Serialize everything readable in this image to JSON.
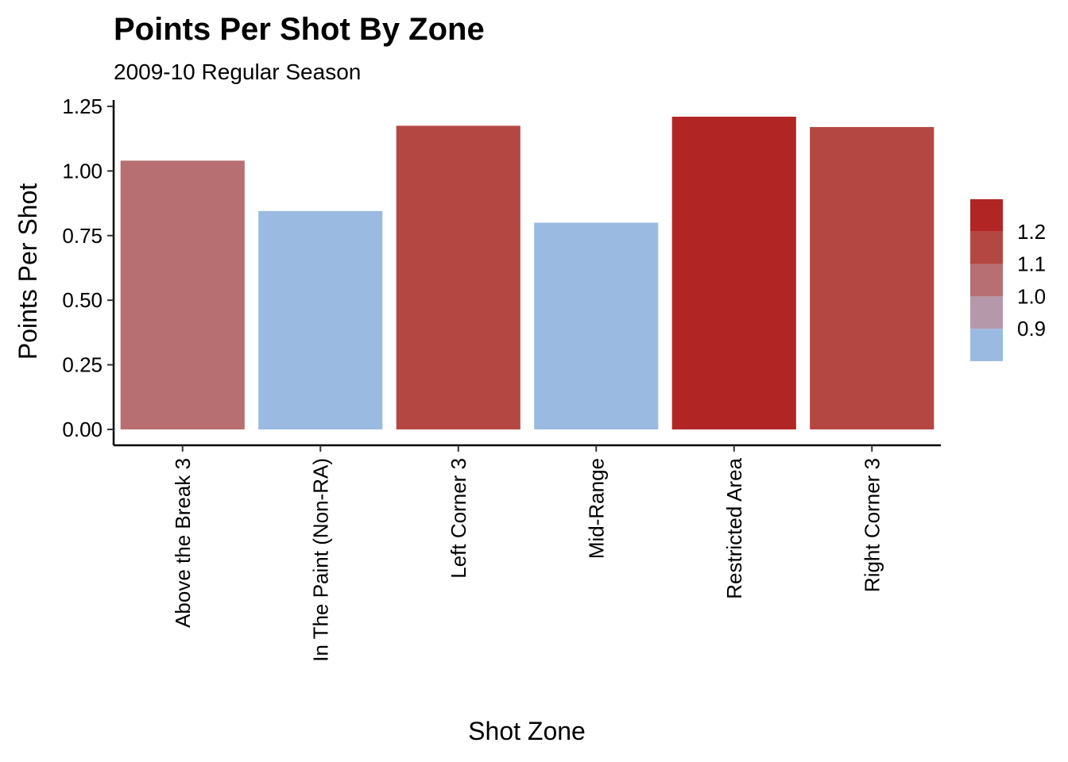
{
  "chart_data": {
    "type": "bar",
    "title": "Points Per Shot By Zone",
    "subtitle": "2009-10 Regular Season",
    "xlabel": "Shot Zone",
    "ylabel": "Points Per Shot",
    "categories": [
      "Above the Break 3",
      "In The Paint (Non-RA)",
      "Left Corner 3",
      "Mid-Range",
      "Restricted Area",
      "Right Corner 3"
    ],
    "values": [
      1.04,
      0.845,
      1.175,
      0.8,
      1.21,
      1.17
    ],
    "ylim": [
      0,
      1.27
    ],
    "yticks": [
      0,
      0.25,
      0.5,
      0.75,
      1.0,
      1.25
    ],
    "ytick_labels": [
      "0.00",
      "0.25",
      "0.50",
      "0.75",
      "1.00",
      "1.25"
    ],
    "grid": false,
    "legend": {
      "placement": "right",
      "type": "binned color scale",
      "bins": [
        {
          "min": 0.8,
          "max": 0.9,
          "color": "#9bbae2"
        },
        {
          "min": 0.9,
          "max": 1.0,
          "color": "#b598aa"
        },
        {
          "min": 1.0,
          "max": 1.1,
          "color": "#b86f71"
        },
        {
          "min": 1.1,
          "max": 1.2,
          "color": "#b54742"
        },
        {
          "min": 1.2,
          "max": 1.3,
          "color": "#b22525"
        }
      ],
      "breaks": [
        0.9,
        1.0,
        1.1,
        1.2
      ],
      "break_labels": [
        "0.9",
        "1.0",
        "1.1",
        "1.2"
      ]
    },
    "bar_colors": [
      "#b86f71",
      "#9bbae2",
      "#b54742",
      "#9bbae2",
      "#b22525",
      "#b54742"
    ]
  }
}
